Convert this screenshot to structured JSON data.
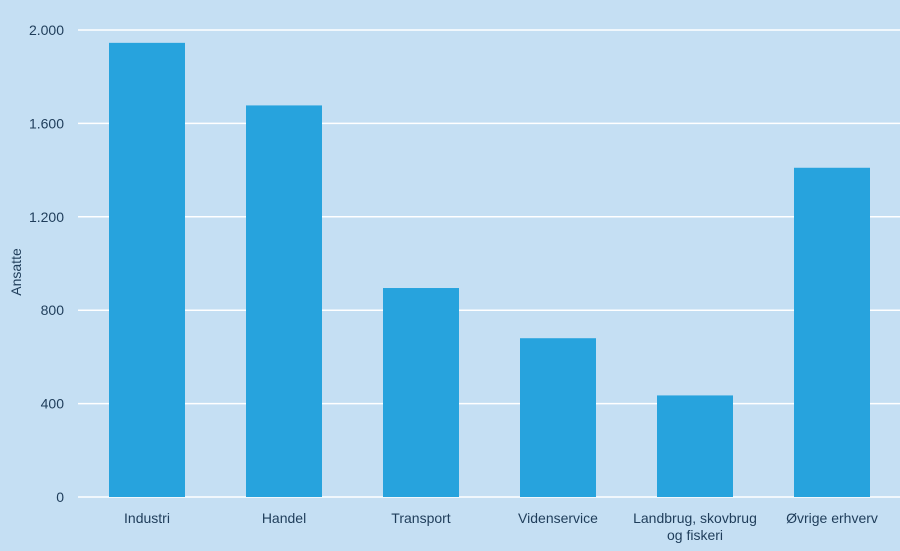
{
  "chart_data": {
    "type": "bar",
    "title": "",
    "xlabel": "",
    "ylabel": "Ansatte",
    "categories": [
      [
        "Industri"
      ],
      [
        "Handel"
      ],
      [
        "Transport"
      ],
      [
        "Videnservice"
      ],
      [
        "Landbrug, skovbrug",
        "og fiskeri"
      ],
      [
        "Øvrige erhverv"
      ]
    ],
    "values": [
      1945,
      1677,
      895,
      680,
      435,
      1410
    ],
    "ylim": [
      0,
      2000
    ],
    "yticks": [
      0,
      400,
      800,
      1200,
      1600,
      2000
    ],
    "ytick_labels": [
      "0",
      "400",
      "800",
      "1.200",
      "1.600",
      "2.000"
    ],
    "grid": true,
    "legend": "none",
    "colors": {
      "background": "#c5dff3",
      "bar": "#27a3dd",
      "grid": "#ffffff",
      "text": "#1f3d5a"
    }
  }
}
